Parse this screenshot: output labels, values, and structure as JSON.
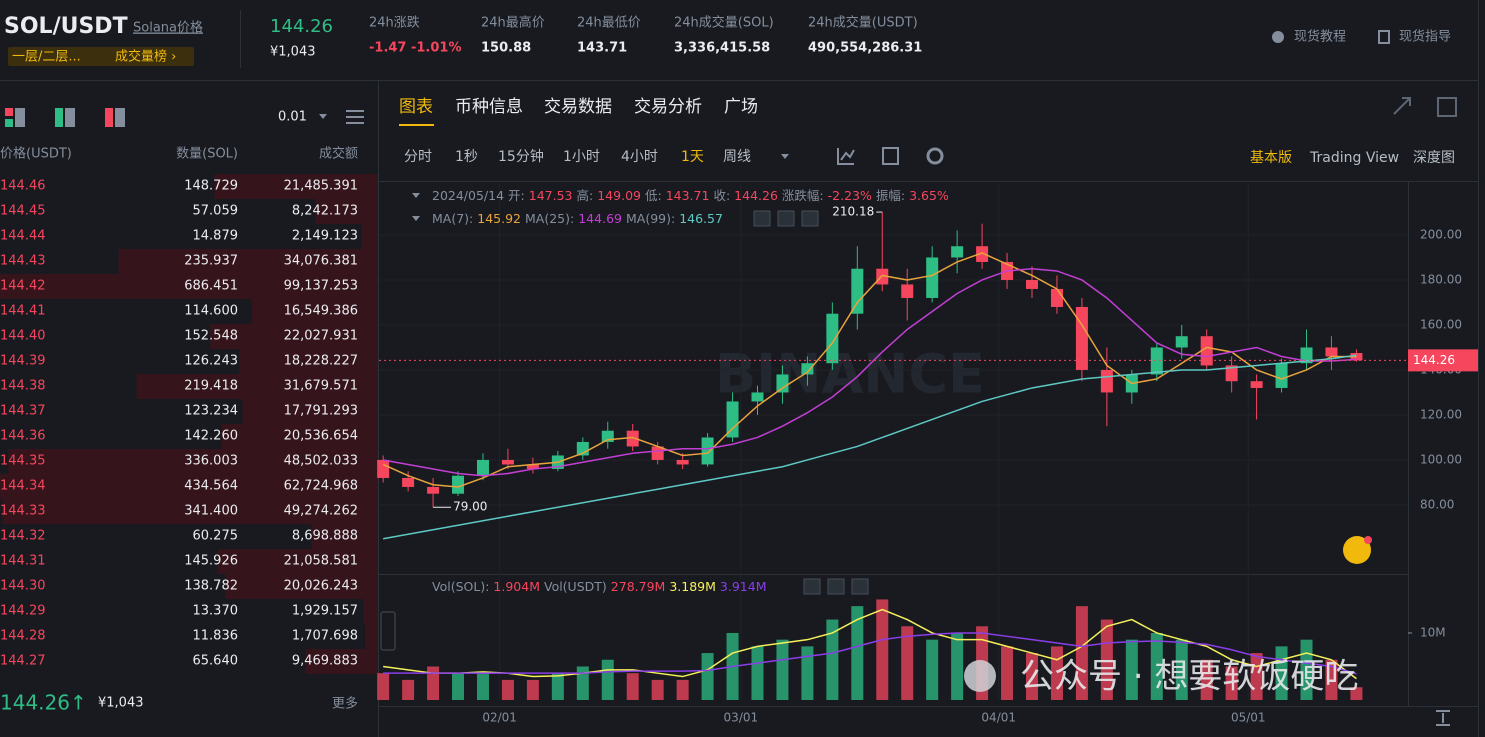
{
  "header": {
    "pair": "SOL/USDT",
    "name_link": "Solana价格",
    "badge_left": "一层/二层...",
    "badge_right": "成交量榜 ›",
    "price": "144.26",
    "price_cny": "¥1,043",
    "stats": [
      {
        "label": "24h涨跌",
        "value": "-1.47 -1.01%"
      },
      {
        "label": "24h最高价",
        "value": "150.88"
      },
      {
        "label": "24h最低价",
        "value": "143.71"
      },
      {
        "label": "24h成交量(SOL)",
        "value": "3,336,415.58"
      },
      {
        "label": "24h成交量(USDT)",
        "value": "490,554,286.31"
      }
    ],
    "links": [
      "现货教程",
      "现货指导"
    ]
  },
  "order_book": {
    "precision": "0.01",
    "columns": [
      "价格(USDT)",
      "数量(SOL)",
      "成交额"
    ],
    "rows": [
      [
        "144.46",
        "148.729",
        "21,485.391"
      ],
      [
        "144.45",
        "57.059",
        "8,242.173"
      ],
      [
        "144.44",
        "14.879",
        "2,149.123"
      ],
      [
        "144.43",
        "235.937",
        "34,076.381"
      ],
      [
        "144.42",
        "686.451",
        "99,137.253"
      ],
      [
        "144.41",
        "114.600",
        "16,549.386"
      ],
      [
        "144.40",
        "152.548",
        "22,027.931"
      ],
      [
        "144.39",
        "126.243",
        "18,228.227"
      ],
      [
        "144.38",
        "219.418",
        "31,679.571"
      ],
      [
        "144.37",
        "123.234",
        "17,791.293"
      ],
      [
        "144.36",
        "142.260",
        "20,536.654"
      ],
      [
        "144.35",
        "336.003",
        "48,502.033"
      ],
      [
        "144.34",
        "434.564",
        "62,724.968"
      ],
      [
        "144.33",
        "341.400",
        "49,274.262"
      ],
      [
        "144.32",
        "60.275",
        "8,698.888"
      ],
      [
        "144.31",
        "145.926",
        "21,058.581"
      ],
      [
        "144.30",
        "138.782",
        "20,026.243"
      ],
      [
        "144.29",
        "13.370",
        "1,929.157"
      ],
      [
        "144.28",
        "11.836",
        "1,707.698"
      ],
      [
        "144.27",
        "65.640",
        "9,469.883"
      ]
    ],
    "last_price": "144.26↑",
    "last_cny": "¥1,043",
    "more": "更多"
  },
  "tabs": [
    "图表",
    "币种信息",
    "交易数据",
    "交易分析",
    "广场"
  ],
  "intervals": [
    "分时",
    "1秒",
    "15分钟",
    "1小时",
    "4小时",
    "1天",
    "周线"
  ],
  "views": [
    "基本版",
    "Trading View",
    "深度图"
  ],
  "info": {
    "date": "2024/05/14",
    "fields": [
      {
        "label": "开:",
        "value": "147.53"
      },
      {
        "label": "高:",
        "value": "149.09"
      },
      {
        "label": "低:",
        "value": "143.71"
      },
      {
        "label": "收:",
        "value": "144.26"
      },
      {
        "label": "涨跌幅:",
        "value": "-2.23%"
      },
      {
        "label": "振幅:",
        "value": "3.65%"
      }
    ]
  },
  "ma_legend": [
    {
      "label": "MA(7):",
      "value": "145.92",
      "color": "#e8a33d"
    },
    {
      "label": "MA(25):",
      "value": "144.69",
      "color": "#c23fd3"
    },
    {
      "label": "MA(99):",
      "value": "146.57",
      "color": "#5ec9c4"
    }
  ],
  "vol_legend": [
    {
      "label": "Vol(SOL):",
      "value": "1.904M"
    },
    {
      "label": "Vol(USDT)",
      "value": "278.79M"
    },
    {
      "label": "",
      "value": "3.189M"
    },
    {
      "label": "",
      "value": "3.914M"
    }
  ],
  "watermarks": [
    "BINANCE",
    "公众号 · 想要软饭硬吃"
  ],
  "chart": {
    "type": "candlestick",
    "up_color": "#2ebd85",
    "down_color": "#f6465d",
    "days": [
      0,
      3,
      6,
      9,
      12,
      15,
      18,
      21,
      24,
      27,
      30,
      33,
      36,
      39,
      42,
      45,
      48,
      51,
      54,
      57,
      60,
      63,
      66,
      69,
      72,
      75,
      78,
      81,
      84,
      87,
      90,
      93,
      96,
      99,
      102,
      105,
      108,
      111,
      114,
      117
    ],
    "open": [
      100,
      92,
      88,
      85,
      93,
      100,
      98,
      96,
      102,
      108,
      113,
      106,
      100,
      98,
      110,
      126,
      130,
      138,
      143,
      165,
      185,
      178,
      172,
      190,
      195,
      188,
      180,
      176,
      168,
      140,
      130,
      138,
      150,
      155,
      142,
      135,
      132,
      143,
      150,
      147.53
    ],
    "high": [
      102,
      95,
      92,
      95,
      103,
      105,
      101,
      104,
      110,
      117,
      116,
      108,
      103,
      112,
      130,
      133,
      142,
      146,
      170,
      195,
      210.18,
      185,
      195,
      202,
      205,
      192,
      186,
      182,
      172,
      150,
      140,
      152,
      160,
      158,
      146,
      138,
      145,
      158,
      155,
      149.09
    ],
    "low": [
      90,
      86,
      79,
      84,
      91,
      96,
      94,
      95,
      100,
      105,
      104,
      98,
      96,
      97,
      108,
      120,
      125,
      133,
      140,
      158,
      175,
      162,
      170,
      183,
      185,
      176,
      172,
      165,
      135,
      115,
      125,
      135,
      145,
      140,
      130,
      118,
      130,
      140,
      140,
      143.71
    ],
    "close": [
      92,
      88,
      85,
      93,
      100,
      98,
      96,
      102,
      108,
      113,
      106,
      100,
      98,
      110,
      126,
      130,
      138,
      143,
      165,
      185,
      178,
      172,
      190,
      195,
      188,
      180,
      176,
      168,
      140,
      130,
      138,
      150,
      155,
      142,
      135,
      132,
      143,
      150,
      146,
      144.26
    ],
    "ma": [
      {
        "name": "MA(7)",
        "color": "#e8a33d",
        "values": [
          98,
          93,
          89,
          88,
          92,
          97,
          98,
          99,
          103,
          109,
          110,
          106,
          102,
          103,
          114,
          124,
          132,
          139,
          152,
          170,
          182,
          180,
          182,
          188,
          192,
          187,
          182,
          176,
          160,
          142,
          134,
          136,
          143,
          150,
          148,
          140,
          136,
          140,
          146,
          145.92
        ]
      },
      {
        "name": "MA(25)",
        "color": "#c23fd3",
        "values": [
          100,
          98,
          96,
          94,
          93,
          94,
          96,
          97,
          99,
          101,
          103,
          104,
          105,
          105,
          107,
          110,
          115,
          121,
          128,
          137,
          148,
          158,
          166,
          174,
          180,
          184,
          185,
          184,
          180,
          172,
          162,
          152,
          147,
          146,
          148,
          150,
          146,
          144,
          144,
          144.69
        ]
      },
      {
        "name": "MA(99)",
        "color": "#5ec9c4",
        "values": [
          65,
          67,
          69,
          71,
          73,
          75,
          77,
          79,
          81,
          83,
          85,
          87,
          89,
          91,
          93,
          95,
          97,
          100,
          103,
          106,
          110,
          114,
          118,
          122,
          126,
          129,
          132,
          134,
          136,
          137,
          138,
          139,
          140,
          140,
          141,
          142,
          143,
          144,
          145,
          146.57
        ]
      }
    ],
    "xlim": [
      -0.5,
      123.2
    ],
    "ylim": [
      50.2,
      223.1
    ],
    "yticks": [
      {
        "value": 80,
        "label": "80.00"
      },
      {
        "value": 100,
        "label": "100.00"
      },
      {
        "value": 120,
        "label": "120.00"
      },
      {
        "value": 140,
        "label": "140.00"
      },
      {
        "value": 160,
        "label": "160.00"
      },
      {
        "value": 180,
        "label": "180.00"
      },
      {
        "value": 200,
        "label": "200.00"
      }
    ],
    "xticks": [
      {
        "value": 14,
        "label": "02/01"
      },
      {
        "value": 43,
        "label": "03/01"
      },
      {
        "value": 74,
        "label": "04/01"
      },
      {
        "value": 104,
        "label": "05/01"
      }
    ],
    "current_price": {
      "value": 144.26,
      "label": "144.26"
    },
    "annotations": [
      {
        "index": 20,
        "label": "210.18"
      },
      {
        "index": 2,
        "label": "79.00"
      }
    ],
    "volume": [
      4,
      3,
      5,
      4,
      4,
      3,
      3,
      4,
      5,
      6,
      4,
      3,
      3,
      7,
      10,
      8,
      9,
      8,
      12,
      14,
      15,
      11,
      9,
      10,
      11,
      8,
      7,
      8,
      14,
      12,
      9,
      10,
      9,
      6,
      5,
      7,
      8,
      9,
      6,
      1.904
    ],
    "vol_ma": [
      {
        "color": "#f5f05a",
        "values": [
          5,
          4.5,
          4,
          4,
          4.2,
          4,
          3.5,
          3.6,
          4,
          4.5,
          4.5,
          4,
          3.5,
          4.5,
          7,
          8,
          8.5,
          9,
          10,
          12,
          13.5,
          12,
          10,
          9,
          9,
          8,
          7,
          6,
          8,
          11,
          12,
          10,
          9,
          8,
          6,
          5,
          6,
          7,
          6,
          3.189
        ]
      },
      {
        "color": "#8a3ee8",
        "values": [
          4,
          4,
          4,
          4,
          4,
          4,
          4,
          4,
          4,
          4.2,
          4.3,
          4.3,
          4.3,
          4.4,
          5,
          5.5,
          6,
          6.5,
          7,
          8,
          9,
          9.5,
          9.8,
          10,
          10,
          9.5,
          9,
          8.5,
          8,
          8.5,
          8.7,
          8.8,
          8.6,
          8.3,
          7.5,
          6.5,
          6,
          5.5,
          5,
          3.914
        ]
      }
    ],
    "vlim": [
      0,
      18.2
    ],
    "vticks": [
      {
        "value": 10,
        "label": "10M"
      }
    ]
  }
}
